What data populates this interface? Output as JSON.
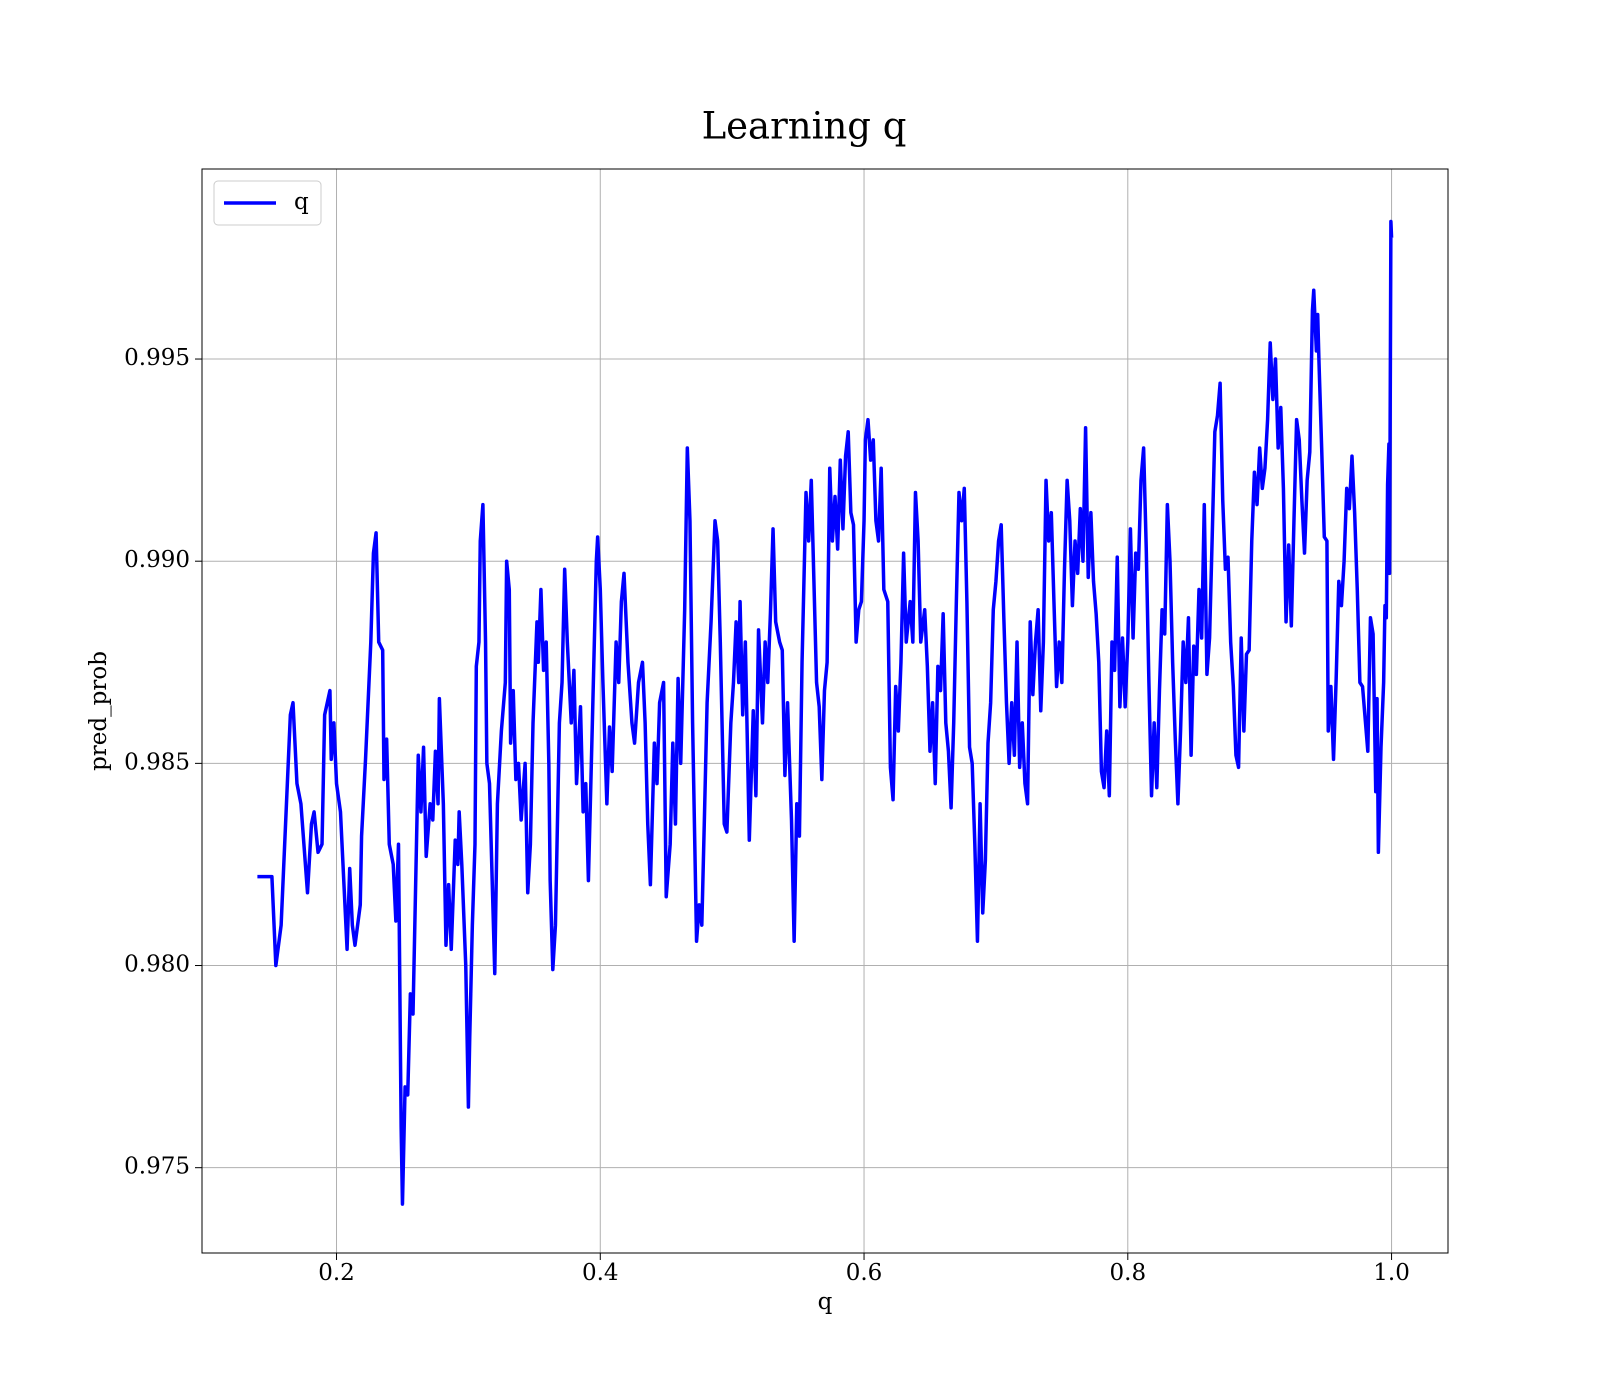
{
  "chart_data": {
    "type": "line",
    "title": "Learning q",
    "x_label": "q",
    "y_label": "pred_prob",
    "xlim": [
      0.098,
      1.0428
    ],
    "ylim": [
      0.97289,
      0.9997
    ],
    "xticks": [
      0.2,
      0.4,
      0.6,
      0.8,
      {
        "value": 1.0,
        "label": "1.0"
      }
    ],
    "yticks": [
      0.975,
      {
        "value": 0.98,
        "label": "0.980"
      },
      0.985,
      {
        "value": 0.99,
        "label": "0.990"
      },
      0.995
    ],
    "grid": true,
    "legend": "upper left",
    "x": [
      0.14,
      0.151,
      0.154,
      0.158,
      0.165,
      0.167,
      0.17,
      0.173,
      0.178,
      0.181,
      0.183,
      0.186,
      0.189,
      0.191,
      0.195,
      0.196,
      0.198,
      0.2,
      0.203,
      0.208,
      0.21,
      0.212,
      0.214,
      0.218,
      0.219,
      0.222,
      0.226,
      0.228,
      0.23,
      0.232,
      0.235,
      0.236,
      0.238,
      0.24,
      0.243,
      0.245,
      0.247,
      0.249,
      0.25,
      0.252,
      0.254,
      0.256,
      0.258,
      0.262,
      0.264,
      0.266,
      0.268,
      0.271,
      0.273,
      0.275,
      0.277,
      0.278,
      0.281,
      0.283,
      0.285,
      0.287,
      0.29,
      0.292,
      0.293,
      0.295,
      0.298,
      0.3,
      0.301,
      0.303,
      0.305,
      0.306,
      0.308,
      0.309,
      0.311,
      0.313,
      0.314,
      0.316,
      0.32,
      0.322,
      0.325,
      0.328,
      0.329,
      0.331,
      0.332,
      0.334,
      0.336,
      0.338,
      0.34,
      0.343,
      0.345,
      0.347,
      0.349,
      0.352,
      0.353,
      0.355,
      0.357,
      0.359,
      0.361,
      0.362,
      0.364,
      0.366,
      0.369,
      0.371,
      0.373,
      0.375,
      0.378,
      0.38,
      0.382,
      0.385,
      0.387,
      0.389,
      0.391,
      0.394,
      0.397,
      0.398,
      0.4,
      0.402,
      0.405,
      0.407,
      0.409,
      0.412,
      0.414,
      0.416,
      0.418,
      0.421,
      0.424,
      0.426,
      0.429,
      0.432,
      0.434,
      0.436,
      0.438,
      0.441,
      0.443,
      0.445,
      0.448,
      0.45,
      0.453,
      0.455,
      0.457,
      0.459,
      0.461,
      0.464,
      0.466,
      0.468,
      0.47,
      0.473,
      0.475,
      0.477,
      0.479,
      0.481,
      0.484,
      0.487,
      0.489,
      0.491,
      0.494,
      0.496,
      0.499,
      0.501,
      0.503,
      0.505,
      0.506,
      0.508,
      0.51,
      0.513,
      0.516,
      0.518,
      0.52,
      0.523,
      0.525,
      0.527,
      0.529,
      0.531,
      0.533,
      0.536,
      0.538,
      0.54,
      0.542,
      0.545,
      0.547,
      0.549,
      0.551,
      0.553,
      0.556,
      0.558,
      0.56,
      0.562,
      0.564,
      0.566,
      0.568,
      0.57,
      0.572,
      0.574,
      0.576,
      0.578,
      0.58,
      0.582,
      0.584,
      0.586,
      0.588,
      0.59,
      0.592,
      0.594,
      0.596,
      0.598,
      0.6,
      0.601,
      0.603,
      0.605,
      0.607,
      0.609,
      0.611,
      0.613,
      0.615,
      0.618,
      0.62,
      0.622,
      0.624,
      0.626,
      0.628,
      0.63,
      0.632,
      0.635,
      0.637,
      0.639,
      0.641,
      0.643,
      0.646,
      0.648,
      0.65,
      0.652,
      0.654,
      0.656,
      0.658,
      0.66,
      0.662,
      0.664,
      0.666,
      0.668,
      0.67,
      0.672,
      0.674,
      0.676,
      0.678,
      0.68,
      0.682,
      0.684,
      0.686,
      0.688,
      0.69,
      0.692,
      0.694,
      0.696,
      0.698,
      0.7,
      0.702,
      0.704,
      0.706,
      0.708,
      0.71,
      0.712,
      0.714,
      0.716,
      0.718,
      0.72,
      0.722,
      0.724,
      0.726,
      0.728,
      0.73,
      0.732,
      0.734,
      0.736,
      0.738,
      0.74,
      0.742,
      0.744,
      0.746,
      0.748,
      0.75,
      0.752,
      0.754,
      0.756,
      0.758,
      0.76,
      0.762,
      0.764,
      0.766,
      0.768,
      0.77,
      0.772,
      0.774,
      0.776,
      0.778,
      0.78,
      0.782,
      0.784,
      0.786,
      0.788,
      0.79,
      0.792,
      0.794,
      0.796,
      0.798,
      0.8,
      0.802,
      0.804,
      0.806,
      0.808,
      0.81,
      0.812,
      0.814,
      0.816,
      0.818,
      0.82,
      0.822,
      0.824,
      0.826,
      0.828,
      0.83,
      0.832,
      0.834,
      0.836,
      0.838,
      0.84,
      0.842,
      0.844,
      0.846,
      0.848,
      0.85,
      0.852,
      0.854,
      0.856,
      0.858,
      0.86,
      0.862,
      0.864,
      0.866,
      0.868,
      0.87,
      0.872,
      0.874,
      0.876,
      0.878,
      0.88,
      0.882,
      0.884,
      0.886,
      0.888,
      0.89,
      0.892,
      0.894,
      0.896,
      0.898,
      0.9,
      0.902,
      0.904,
      0.906,
      0.908,
      0.91,
      0.912,
      0.914,
      0.916,
      0.918,
      0.92,
      0.922,
      0.924,
      0.926,
      0.928,
      0.93,
      0.932,
      0.934,
      0.936,
      0.938,
      0.94,
      0.941,
      0.943,
      0.944,
      0.945,
      0.947,
      0.949,
      0.951,
      0.952,
      0.954,
      0.956,
      0.958,
      0.96,
      0.962,
      0.964,
      0.966,
      0.968,
      0.97,
      0.972,
      0.974,
      0.976,
      0.978,
      0.98,
      0.982,
      0.984,
      0.986,
      0.988,
      0.989,
      0.99,
      0.992,
      0.994,
      0.995,
      0.996,
      0.997,
      0.998,
      0.9985,
      0.9995,
      1.0
    ],
    "series": [
      {
        "name": "q",
        "color": "#0000ff",
        "values": [
          0.9822,
          0.9822,
          0.98,
          0.981,
          0.9862,
          0.9865,
          0.9845,
          0.984,
          0.9818,
          0.9835,
          0.9838,
          0.9828,
          0.983,
          0.9862,
          0.9868,
          0.9851,
          0.986,
          0.9845,
          0.9838,
          0.9804,
          0.9824,
          0.981,
          0.9805,
          0.9815,
          0.9832,
          0.9851,
          0.988,
          0.9902,
          0.9907,
          0.988,
          0.9878,
          0.9846,
          0.9856,
          0.983,
          0.9825,
          0.9811,
          0.983,
          0.976,
          0.9741,
          0.977,
          0.9768,
          0.9793,
          0.9788,
          0.9852,
          0.9838,
          0.9854,
          0.9827,
          0.984,
          0.9836,
          0.9853,
          0.984,
          0.9866,
          0.984,
          0.9805,
          0.982,
          0.9804,
          0.9831,
          0.9825,
          0.9838,
          0.9825,
          0.98,
          0.9765,
          0.9782,
          0.981,
          0.983,
          0.9874,
          0.988,
          0.9905,
          0.9914,
          0.988,
          0.985,
          0.9845,
          0.9798,
          0.984,
          0.9858,
          0.987,
          0.99,
          0.9893,
          0.9855,
          0.9868,
          0.9846,
          0.985,
          0.9836,
          0.985,
          0.9818,
          0.983,
          0.986,
          0.9885,
          0.9875,
          0.9893,
          0.9873,
          0.988,
          0.985,
          0.9821,
          0.9799,
          0.981,
          0.986,
          0.987,
          0.9898,
          0.988,
          0.986,
          0.9873,
          0.9845,
          0.9864,
          0.9838,
          0.9845,
          0.9821,
          0.986,
          0.99,
          0.9906,
          0.9893,
          0.987,
          0.984,
          0.9859,
          0.9848,
          0.988,
          0.987,
          0.989,
          0.9897,
          0.9875,
          0.986,
          0.9855,
          0.987,
          0.9875,
          0.986,
          0.9835,
          0.982,
          0.9855,
          0.9845,
          0.9865,
          0.987,
          0.9817,
          0.983,
          0.9855,
          0.9835,
          0.9871,
          0.985,
          0.9888,
          0.9928,
          0.991,
          0.986,
          0.9806,
          0.9815,
          0.981,
          0.9837,
          0.9865,
          0.9885,
          0.991,
          0.9905,
          0.988,
          0.9835,
          0.9833,
          0.986,
          0.987,
          0.9885,
          0.987,
          0.989,
          0.9862,
          0.988,
          0.9831,
          0.9863,
          0.9842,
          0.9883,
          0.986,
          0.988,
          0.987,
          0.9887,
          0.9908,
          0.9885,
          0.988,
          0.9878,
          0.9847,
          0.9865,
          0.9836,
          0.9806,
          0.984,
          0.9832,
          0.9875,
          0.9917,
          0.9905,
          0.992,
          0.9895,
          0.987,
          0.9864,
          0.9846,
          0.9868,
          0.9875,
          0.9923,
          0.9905,
          0.9916,
          0.9903,
          0.9925,
          0.9908,
          0.9926,
          0.9932,
          0.9912,
          0.9909,
          0.988,
          0.9888,
          0.989,
          0.991,
          0.993,
          0.9935,
          0.9925,
          0.993,
          0.991,
          0.9905,
          0.9923,
          0.9893,
          0.989,
          0.9849,
          0.9841,
          0.9869,
          0.9858,
          0.9875,
          0.9902,
          0.988,
          0.989,
          0.988,
          0.9917,
          0.9905,
          0.988,
          0.9888,
          0.9874,
          0.9853,
          0.9865,
          0.9845,
          0.9874,
          0.9868,
          0.9887,
          0.986,
          0.9853,
          0.9839,
          0.986,
          0.989,
          0.9917,
          0.991,
          0.9918,
          0.989,
          0.9854,
          0.985,
          0.983,
          0.9806,
          0.984,
          0.9813,
          0.9826,
          0.9855,
          0.9865,
          0.9888,
          0.9895,
          0.9905,
          0.9909,
          0.9886,
          0.9865,
          0.985,
          0.9865,
          0.9852,
          0.988,
          0.9849,
          0.986,
          0.9845,
          0.984,
          0.9885,
          0.9867,
          0.988,
          0.9888,
          0.9863,
          0.988,
          0.992,
          0.9905,
          0.9912,
          0.989,
          0.9869,
          0.988,
          0.987,
          0.9898,
          0.992,
          0.991,
          0.9889,
          0.9905,
          0.9897,
          0.9913,
          0.99,
          0.9933,
          0.9896,
          0.9912,
          0.9895,
          0.9887,
          0.9875,
          0.9848,
          0.9844,
          0.9858,
          0.9842,
          0.988,
          0.9873,
          0.9901,
          0.9864,
          0.9881,
          0.9864,
          0.988,
          0.9908,
          0.9881,
          0.9902,
          0.9898,
          0.992,
          0.9928,
          0.9903,
          0.987,
          0.9842,
          0.986,
          0.9844,
          0.9868,
          0.9888,
          0.9882,
          0.9914,
          0.99,
          0.9875,
          0.9856,
          0.984,
          0.9858,
          0.988,
          0.987,
          0.9886,
          0.9852,
          0.9879,
          0.9872,
          0.9893,
          0.9881,
          0.9914,
          0.9872,
          0.9881,
          0.9906,
          0.9932,
          0.9936,
          0.9944,
          0.9915,
          0.9898,
          0.9901,
          0.988,
          0.9869,
          0.9852,
          0.9849,
          0.9881,
          0.9858,
          0.9877,
          0.9878,
          0.9905,
          0.9922,
          0.9914,
          0.9928,
          0.9918,
          0.9923,
          0.9935,
          0.9954,
          0.994,
          0.995,
          0.9928,
          0.9938,
          0.9918,
          0.9885,
          0.9904,
          0.9884,
          0.991,
          0.9935,
          0.993,
          0.9915,
          0.9902,
          0.992,
          0.9927,
          0.9962,
          0.9967,
          0.9952,
          0.9961,
          0.9949,
          0.9928,
          0.9906,
          0.9905,
          0.9858,
          0.9869,
          0.9851,
          0.9871,
          0.9895,
          0.9889,
          0.99,
          0.9918,
          0.9913,
          0.9926,
          0.9912,
          0.9893,
          0.987,
          0.9869,
          0.9861,
          0.9853,
          0.9886,
          0.9882,
          0.9843,
          0.9866,
          0.9828,
          0.9854,
          0.987,
          0.9889,
          0.9886,
          0.9919,
          0.9929,
          0.9897,
          0.9984,
          0.998
        ]
      }
    ]
  }
}
